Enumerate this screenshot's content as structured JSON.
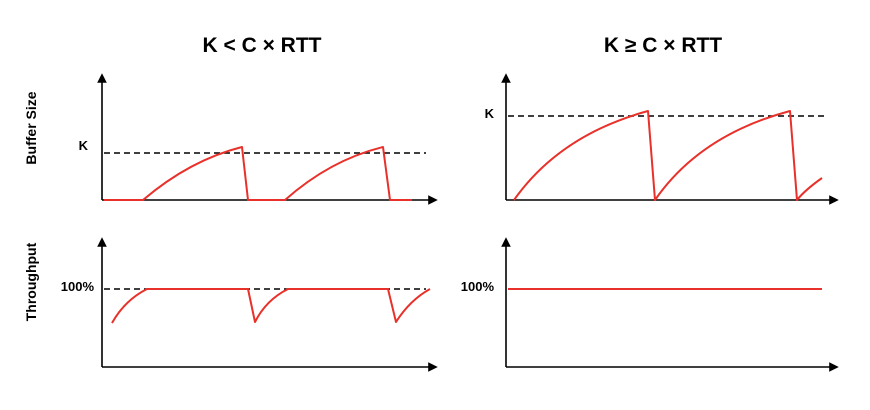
{
  "titles": {
    "left": "K < C × RTT",
    "right": "K ≥ C × RTT"
  },
  "ylabels": {
    "top": "Buffer Size",
    "bottom": "Throughput"
  },
  "ticks": {
    "k_left": "K",
    "k_right": "K",
    "pct_left": "100%",
    "pct_right": "100%"
  },
  "colors": {
    "curve": "#e8312a",
    "axis": "#000000"
  }
}
